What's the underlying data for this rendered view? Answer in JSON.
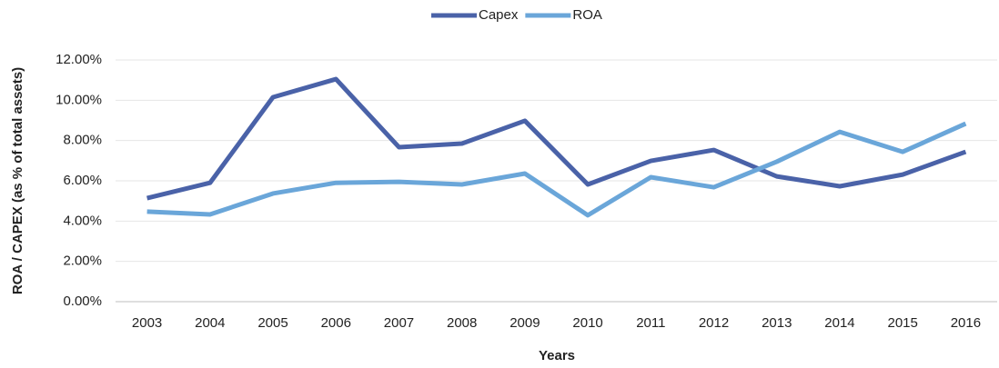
{
  "chart_data": {
    "type": "line",
    "y_label": "ROA / CAPEX (as % of total assets)",
    "x_label": "Years",
    "categories": [
      "2003",
      "2004",
      "2005",
      "2006",
      "2007",
      "2008",
      "2009",
      "2010",
      "2011",
      "2012",
      "2013",
      "2014",
      "2015",
      "2016"
    ],
    "series": [
      {
        "name": "Capex",
        "color": "#4a62a8",
        "values": [
          5.14,
          5.9,
          10.15,
          11.05,
          7.67,
          7.85,
          8.98,
          5.82,
          6.99,
          7.53,
          6.22,
          5.73,
          6.31,
          7.44
        ]
      },
      {
        "name": "ROA",
        "color": "#6aa6d9",
        "values": [
          4.47,
          4.33,
          5.37,
          5.9,
          5.95,
          5.82,
          6.36,
          4.29,
          6.18,
          5.68,
          6.95,
          8.43,
          7.44,
          8.84
        ]
      }
    ],
    "ylim": [
      0,
      12
    ],
    "yticks": [
      {
        "value": 0,
        "label": "0.00%"
      },
      {
        "value": 2,
        "label": "2.00%"
      },
      {
        "value": 4,
        "label": "4.00%"
      },
      {
        "value": 6,
        "label": "6.00%"
      },
      {
        "value": 8,
        "label": "8.00%"
      },
      {
        "value": 10,
        "label": "10.00%"
      },
      {
        "value": 12,
        "label": "12.00%"
      }
    ],
    "grid": true,
    "legend": "top"
  }
}
